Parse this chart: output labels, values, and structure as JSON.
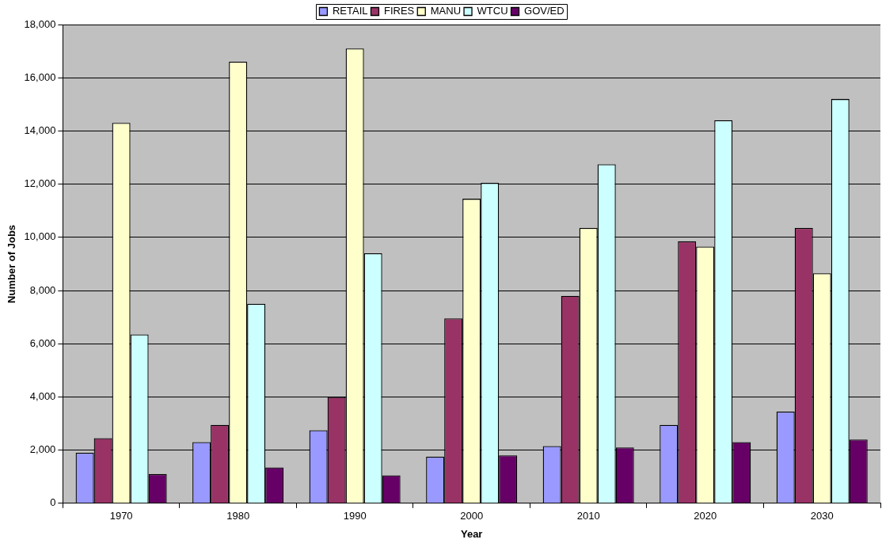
{
  "chart_data": {
    "type": "bar",
    "xlabel": "Year",
    "ylabel": "Number of Jobs",
    "categories": [
      "1970",
      "1980",
      "1990",
      "2000",
      "2010",
      "2020",
      "2030"
    ],
    "series": [
      {
        "name": "RETAIL",
        "color": "#9999ff",
        "values": [
          1900,
          2300,
          2750,
          1750,
          2150,
          2950,
          3450
        ]
      },
      {
        "name": "FIRES",
        "color": "#993366",
        "values": [
          2450,
          2950,
          4000,
          6950,
          7800,
          9850,
          10350
        ]
      },
      {
        "name": "MANU",
        "color": "#ffffcc",
        "values": [
          14300,
          16600,
          17100,
          11450,
          10350,
          9650,
          8650
        ]
      },
      {
        "name": "WTCU",
        "color": "#ccffff",
        "values": [
          6350,
          7500,
          9400,
          12050,
          12750,
          14400,
          15200
        ]
      },
      {
        "name": "GOV/ED",
        "color": "#660066",
        "values": [
          1100,
          1350,
          1050,
          1800,
          2100,
          2300,
          2400
        ]
      }
    ],
    "ylim": [
      0,
      18000
    ],
    "yticks": [
      0,
      {
        "value": 2000,
        "label": "2,000"
      },
      {
        "value": 4000,
        "label": "4,000"
      },
      {
        "value": 6000,
        "label": "6,000"
      },
      {
        "value": 8000,
        "label": "8,000"
      },
      {
        "value": 10000,
        "label": "10,000"
      },
      {
        "value": 12000,
        "label": "12,000"
      },
      {
        "value": 14000,
        "label": "14,000"
      },
      {
        "value": 16000,
        "label": "16,000"
      },
      {
        "value": 18000,
        "label": "18,000"
      }
    ],
    "grid": "y",
    "legend": "top"
  }
}
